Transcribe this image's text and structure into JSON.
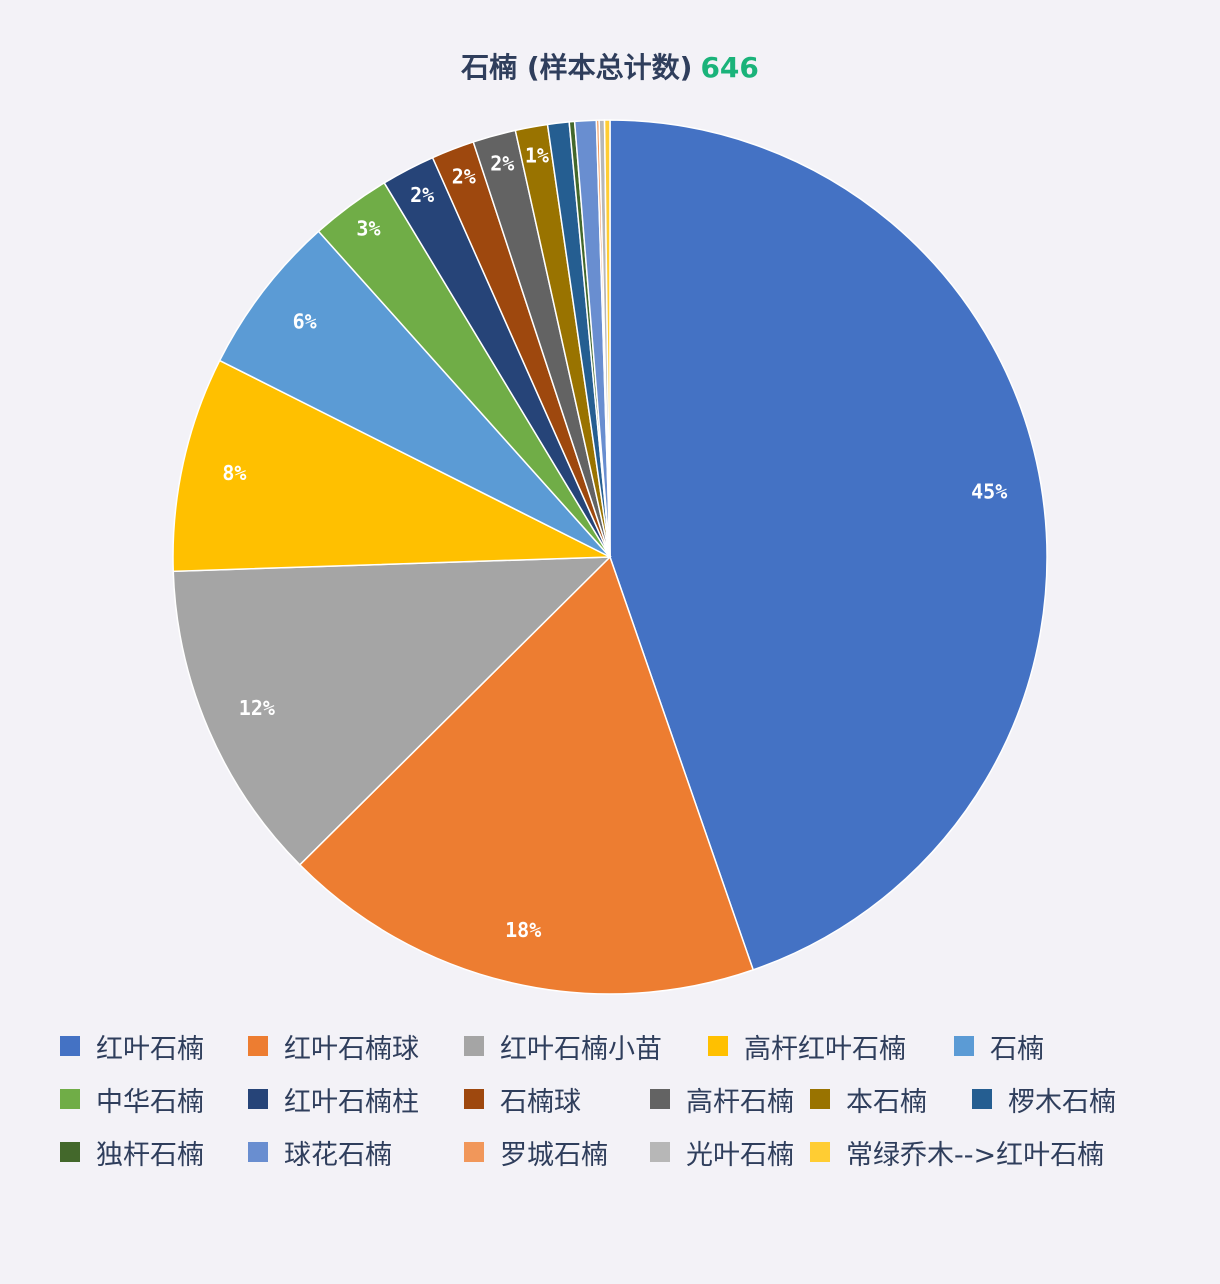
{
  "chart_data": {
    "type": "pie",
    "title": "石楠 (样本总计数)",
    "total": "646",
    "slices": [
      {
        "name": "红叶石楠",
        "value": 45,
        "label": "45%",
        "color": "#4472c4"
      },
      {
        "name": "红叶石楠球",
        "value": 18,
        "label": "18%",
        "color": "#ed7d31"
      },
      {
        "name": "红叶石楠小苗",
        "value": 12,
        "label": "12%",
        "color": "#a5a5a5"
      },
      {
        "name": "高杆红叶石楠",
        "value": 8,
        "label": "8%",
        "color": "#ffc000"
      },
      {
        "name": "石楠",
        "value": 6,
        "label": "6%",
        "color": "#5b9bd5"
      },
      {
        "name": "中华石楠",
        "value": 3,
        "label": "3%",
        "color": "#70ad47"
      },
      {
        "name": "红叶石楠柱",
        "value": 2,
        "label": "2%",
        "color": "#264478"
      },
      {
        "name": "石楠球",
        "value": 1.6,
        "label": "2%",
        "color": "#9e480e"
      },
      {
        "name": "高杆石楠",
        "value": 1.6,
        "label": "2%",
        "color": "#636363"
      },
      {
        "name": "本石楠",
        "value": 1.2,
        "label": "1%",
        "color": "#997300"
      },
      {
        "name": "椤木石楠",
        "value": 0.8,
        "label": "",
        "color": "#255e91"
      },
      {
        "name": "独杆石楠",
        "value": 0.2,
        "label": "",
        "color": "#43682b"
      },
      {
        "name": "球花石楠",
        "value": 0.8,
        "label": "",
        "color": "#698ed0"
      },
      {
        "name": "罗城石楠",
        "value": 0.1,
        "label": "",
        "color": "#f1975a"
      },
      {
        "name": "光叶石楠",
        "value": 0.2,
        "label": "",
        "color": "#b7b7b7"
      },
      {
        "name": "常绿乔木-->红叶石楠",
        "value": 0.2,
        "label": "",
        "color": "#ffcd33"
      }
    ],
    "legend_position": "bottom"
  }
}
